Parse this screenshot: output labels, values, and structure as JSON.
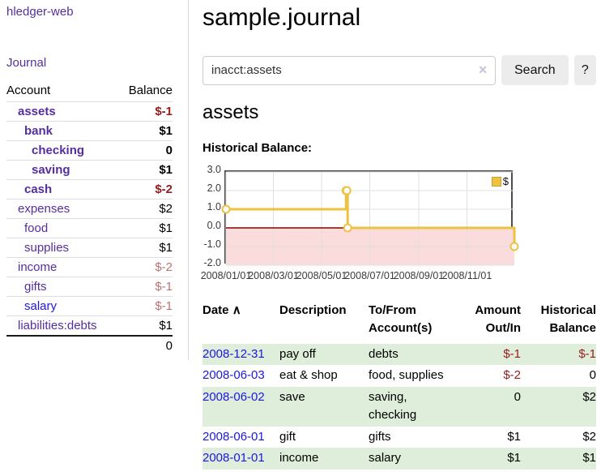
{
  "brand": "hledger-web",
  "nav": {
    "journal": "Journal"
  },
  "colors": {
    "link_purple": "#552e9e",
    "link_blue": "#1d17e0",
    "negative_strong": "#941d1d",
    "negative_soft": "#bb7272",
    "row_shade_green": "#dfeeda",
    "button_gray": "#ececec"
  },
  "sidebar": {
    "header": {
      "account": "Account",
      "balance": "Balance"
    },
    "accounts": [
      {
        "name": "assets",
        "balance": "$-1",
        "depth": 1,
        "style": "bold",
        "balance_style": "neg-strong",
        "link": "purple"
      },
      {
        "name": "bank",
        "balance": "$1",
        "depth": 2,
        "style": "bold",
        "balance_style": "pos-strong",
        "link": "purple"
      },
      {
        "name": "checking",
        "balance": "0",
        "depth": 3,
        "style": "bold",
        "balance_style": "pos-strong",
        "link": "purple"
      },
      {
        "name": "saving",
        "balance": "$1",
        "depth": 3,
        "style": "bold",
        "balance_style": "pos-strong",
        "link": "purple"
      },
      {
        "name": "cash",
        "balance": "$-2",
        "depth": 2,
        "style": "bold",
        "balance_style": "neg-strong",
        "link": "purple"
      },
      {
        "name": "expenses",
        "balance": "$2",
        "depth": 1,
        "style": "normal",
        "balance_style": "pos",
        "link": "purple"
      },
      {
        "name": "food",
        "balance": "$1",
        "depth": 2,
        "style": "normal",
        "balance_style": "pos",
        "link": "purple"
      },
      {
        "name": "supplies",
        "balance": "$1",
        "depth": 2,
        "style": "normal",
        "balance_style": "pos",
        "link": "purple"
      },
      {
        "name": "income",
        "balance": "$-2",
        "depth": 1,
        "style": "normal",
        "balance_style": "neg",
        "link": "purple"
      },
      {
        "name": "gifts",
        "balance": "$-1",
        "depth": 2,
        "style": "normal",
        "balance_style": "neg",
        "link": "purple"
      },
      {
        "name": "salary",
        "balance": "$-1",
        "depth": 2,
        "style": "normal",
        "balance_style": "neg",
        "link": "blue"
      },
      {
        "name": "liabilities:debts",
        "balance": "$1",
        "depth": 1,
        "style": "normal",
        "balance_style": "pos",
        "link": "purple"
      }
    ],
    "total": "0"
  },
  "main": {
    "title": "sample.journal",
    "search": {
      "value": "inacct:assets",
      "clear": "✕",
      "button": "Search",
      "help": "?"
    },
    "heading": "assets",
    "chart_title": "Historical Balance:"
  },
  "chart_data": {
    "type": "line",
    "step": true,
    "title": "Historical Balance",
    "series": [
      {
        "name": "$",
        "color": "#edc240",
        "points": [
          [
            "2008-01-01",
            1
          ],
          [
            "2008-06-01",
            2
          ],
          [
            "2008-06-02",
            2
          ],
          [
            "2008-06-03",
            0
          ],
          [
            "2008-12-31",
            -1
          ]
        ]
      }
    ],
    "xrange": [
      "2008-01-01",
      "2008-12-31"
    ],
    "ylim": [
      -2,
      3
    ],
    "yticks": [
      3,
      2,
      1,
      0,
      -1,
      -2
    ],
    "ytick_labels": [
      "3.0",
      "2.0",
      "1.0",
      "0.0",
      "-1.0",
      "-2.0"
    ],
    "xticks": [
      "2008-01-01",
      "2008-03-01",
      "2008-05-01",
      "2008-07-01",
      "2008-09-01",
      "2008-11-01"
    ],
    "xtick_labels": [
      "2008/01/01",
      "2008/03/01",
      "2008/05/01",
      "2008/07/01",
      "2008/09/01",
      "2008/11/01"
    ],
    "legend": {
      "label": "$",
      "position": "top-right"
    },
    "grid": true,
    "grid_color": "#e0e0e0",
    "negative_fill": "#fadcdc",
    "zero_line_color": "#8b0000",
    "marker": {
      "radius": 4.5,
      "fill": "#ffffff"
    }
  },
  "register": {
    "headers": {
      "date": "Date",
      "sort_indicator": "∧",
      "description": "Description",
      "accounts": "To/From Account(s)",
      "amount": "Amount Out/In",
      "balance": "Historical Balance"
    },
    "rows": [
      {
        "date": "2008-12-31",
        "description": "pay off",
        "accounts": "debts",
        "amount": "$-1",
        "balance": "$-1",
        "amount_neg": true,
        "balance_neg": true,
        "shaded": true
      },
      {
        "date": "2008-06-03",
        "description": "eat & shop",
        "accounts": "food, supplies",
        "amount": "$-2",
        "balance": "0",
        "amount_neg": true,
        "balance_neg": false,
        "shaded": false
      },
      {
        "date": "2008-06-02",
        "description": "save",
        "accounts": "saving, checking",
        "amount": "0",
        "balance": "$2",
        "amount_neg": false,
        "balance_neg": false,
        "shaded": true
      },
      {
        "date": "2008-06-01",
        "description": "gift",
        "accounts": "gifts",
        "amount": "$1",
        "balance": "$2",
        "amount_neg": false,
        "balance_neg": false,
        "shaded": false
      },
      {
        "date": "2008-01-01",
        "description": "income",
        "accounts": "salary",
        "amount": "$1",
        "balance": "$1",
        "amount_neg": false,
        "balance_neg": false,
        "shaded": true
      }
    ]
  }
}
